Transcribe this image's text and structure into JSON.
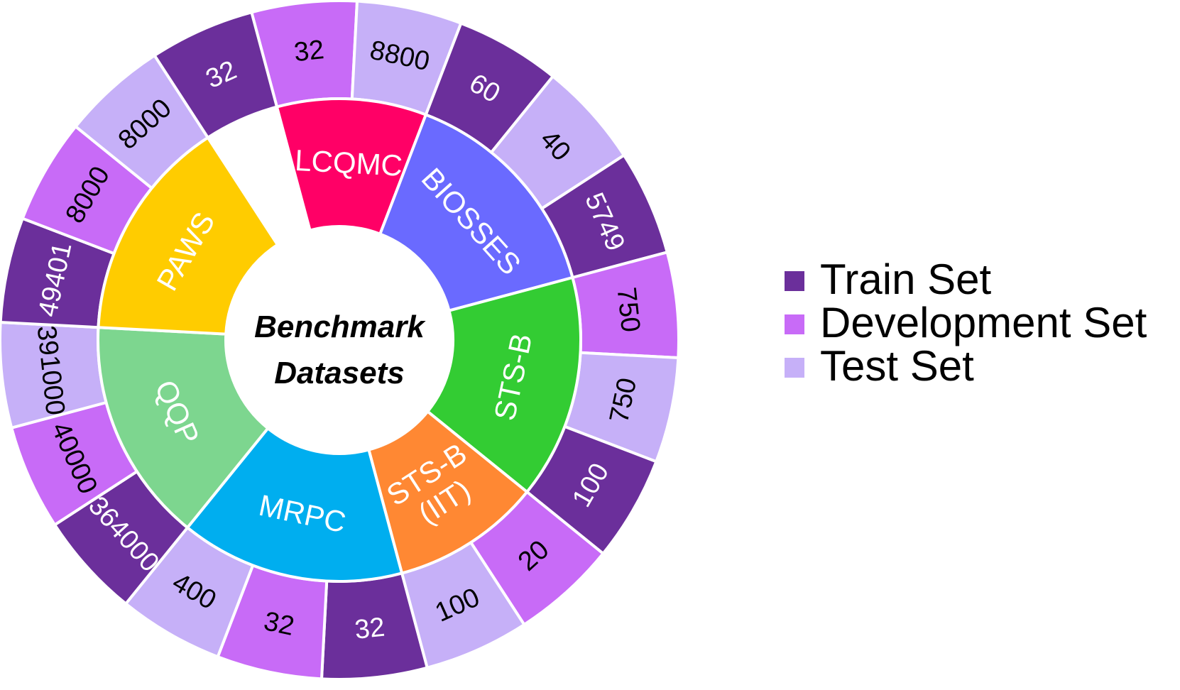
{
  "chart_data": {
    "type": "pie",
    "subtype": "sunburst",
    "center_title": [
      "Benchmark",
      "Datasets"
    ],
    "inner_ring": [
      {
        "name": "LCQMC",
        "color": "#ff0066"
      },
      {
        "name": "BIOSSES",
        "color": "#6a6aff"
      },
      {
        "name": "STS-B",
        "color": "#33cc33"
      },
      {
        "name": "STS-B (IIT)",
        "color": "#ff8833"
      },
      {
        "name": "MRPC",
        "color": "#00aeef"
      },
      {
        "name": "QQP",
        "color": "#7dd68f"
      },
      {
        "name": "PAWS",
        "color": "#ffcc00"
      }
    ],
    "outer_ring": [
      {
        "label": "32",
        "set": "Development Set"
      },
      {
        "label": "8800",
        "set": "Test Set"
      },
      {
        "label": "60",
        "set": "Train Set"
      },
      {
        "label": "40",
        "set": "Test Set"
      },
      {
        "label": "5749",
        "set": "Train Set"
      },
      {
        "label": "750",
        "set": "Development Set"
      },
      {
        "label": "750",
        "set": "Test Set"
      },
      {
        "label": "100",
        "set": "Train Set"
      },
      {
        "label": "20",
        "set": "Development Set"
      },
      {
        "label": "100",
        "set": "Test Set"
      },
      {
        "label": "32",
        "set": "Train Set"
      },
      {
        "label": "32",
        "set": "Development Set"
      },
      {
        "label": "400",
        "set": "Test Set"
      },
      {
        "label": "364000",
        "set": "Train Set"
      },
      {
        "label": "40000",
        "set": "Development Set"
      },
      {
        "label": "391000",
        "set": "Test Set"
      },
      {
        "label": "49401",
        "set": "Train Set"
      },
      {
        "label": "8000",
        "set": "Development Set"
      },
      {
        "label": "8000",
        "set": "Test Set"
      },
      {
        "label": "32",
        "set": "Train Set"
      }
    ],
    "legend": [
      {
        "label": "Train Set",
        "color": "#6b2f9b",
        "text_color": "#ffffff"
      },
      {
        "label": "Development Set",
        "color": "#c86bf7",
        "text_color": "#000000"
      },
      {
        "label": "Test Set",
        "color": "#c6b0f8",
        "text_color": "#000000"
      }
    ],
    "legend_position": "right"
  }
}
